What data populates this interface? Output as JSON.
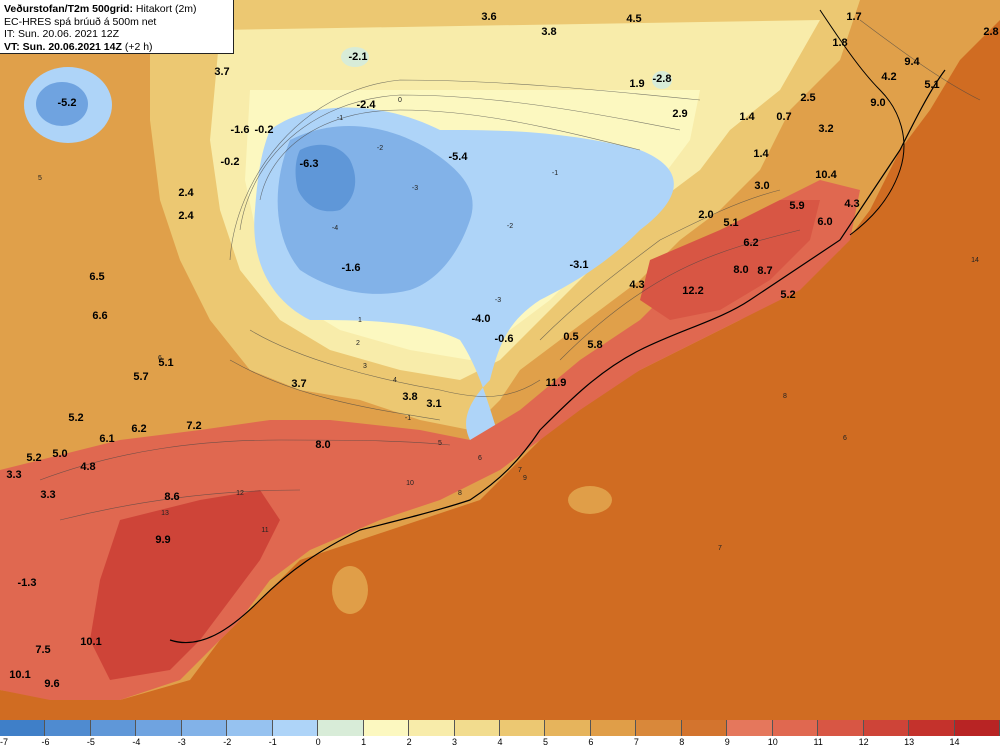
{
  "header": {
    "title_bold": "Veðurstofan/T2m 500grid:",
    "title_rest": "Hitakort (2m)",
    "model_line": "EC-HRES spá brúuð á 500m net",
    "it_line": "IT: Sun. 20.06. 2021 12Z",
    "vt_bold": "VT: Sun. 20.06.2021 14Z",
    "vt_rest": "(+2 h)"
  },
  "colorbar": {
    "colors": [
      "#3f7fc8",
      "#4f8bd0",
      "#5f97d8",
      "#6fa3e0",
      "#82b2e8",
      "#96c2f0",
      "#aed4f8",
      "#d8ecd8",
      "#fcf8c0",
      "#f8ecaa",
      "#f2dc8e",
      "#ecc872",
      "#e6b45c",
      "#e09e48",
      "#d9883a",
      "#d3742e",
      "#e5775c",
      "#e06850",
      "#d85644",
      "#ce4438",
      "#c4322c",
      "#b82424"
    ],
    "ticks": [
      "-7",
      "-6",
      "-5",
      "-4",
      "-3",
      "-2",
      "-1",
      "0",
      "1",
      "2",
      "3",
      "4",
      "5",
      "6",
      "7",
      "8",
      "9",
      "10",
      "11",
      "12",
      "13",
      "14"
    ]
  },
  "values": [
    {
      "t": "-5.2"
    },
    {
      "t": "3.7"
    },
    {
      "t": "-2.1"
    },
    {
      "t": "3.6"
    },
    {
      "t": "3.8"
    },
    {
      "t": "4.5"
    },
    {
      "t": "1.7"
    },
    {
      "t": "1.8"
    },
    {
      "t": "2.8"
    },
    {
      "t": "9.4"
    },
    {
      "t": "4.2"
    },
    {
      "t": "5.1"
    },
    {
      "t": "1.9"
    },
    {
      "t": "-2.8"
    },
    {
      "t": "2.9"
    },
    {
      "t": "-2.4"
    },
    {
      "t": "2.5"
    },
    {
      "t": "9.0"
    },
    {
      "t": "-1.6"
    },
    {
      "t": "-0.2"
    },
    {
      "t": "-0.2"
    },
    {
      "t": "-6.3"
    },
    {
      "t": "-5.4"
    },
    {
      "t": "1.4"
    },
    {
      "t": "0.7"
    },
    {
      "t": "3.2"
    },
    {
      "t": "1.4"
    },
    {
      "t": "10.4"
    },
    {
      "t": "3.0"
    },
    {
      "t": "2.4"
    },
    {
      "t": "2.4"
    },
    {
      "t": "5.9"
    },
    {
      "t": "4.3"
    },
    {
      "t": "2.0"
    },
    {
      "t": "5.1"
    },
    {
      "t": "6.0"
    },
    {
      "t": "6.2"
    },
    {
      "t": "-3.1"
    },
    {
      "t": "-1.6"
    },
    {
      "t": "6.5"
    },
    {
      "t": "8.0"
    },
    {
      "t": "8.7"
    },
    {
      "t": "4.3"
    },
    {
      "t": "12.2"
    },
    {
      "t": "5.2"
    },
    {
      "t": "6.6"
    },
    {
      "t": "-4.0"
    },
    {
      "t": "0.5"
    },
    {
      "t": "-0.6"
    },
    {
      "t": "5.8"
    },
    {
      "t": "5.1"
    },
    {
      "t": "5.7"
    },
    {
      "t": "3.7"
    },
    {
      "t": "11.9"
    },
    {
      "t": "3.8"
    },
    {
      "t": "3.1"
    },
    {
      "t": "5.2"
    },
    {
      "t": "7.2"
    },
    {
      "t": "6.2"
    },
    {
      "t": "6.1"
    },
    {
      "t": "8.0"
    },
    {
      "t": "5.2"
    },
    {
      "t": "5.0"
    },
    {
      "t": "4.8"
    },
    {
      "t": "3.3"
    },
    {
      "t": "3.3"
    },
    {
      "t": "8.6"
    },
    {
      "t": "9.9"
    },
    {
      "t": "-1.3"
    },
    {
      "t": "10.1"
    },
    {
      "t": "7.5"
    },
    {
      "t": "10.1"
    },
    {
      "t": "9.6"
    }
  ],
  "contour_labels": [
    {
      "t": "-1"
    },
    {
      "t": "-2"
    },
    {
      "t": "-3"
    },
    {
      "t": "-4"
    },
    {
      "t": "-2"
    },
    {
      "t": "-1"
    },
    {
      "t": "0"
    },
    {
      "t": "1"
    },
    {
      "t": "2"
    },
    {
      "t": "3"
    },
    {
      "t": "4"
    },
    {
      "t": "5"
    },
    {
      "t": "6"
    },
    {
      "t": "7"
    },
    {
      "t": "8"
    },
    {
      "t": "9"
    },
    {
      "t": "10"
    },
    {
      "t": "11"
    },
    {
      "t": "12"
    },
    {
      "t": "13"
    },
    {
      "t": "7"
    },
    {
      "t": "8"
    },
    {
      "t": "6"
    },
    {
      "t": "14"
    },
    {
      "t": "-3"
    },
    {
      "t": "-1"
    },
    {
      "t": "5"
    },
    {
      "t": "6"
    }
  ]
}
